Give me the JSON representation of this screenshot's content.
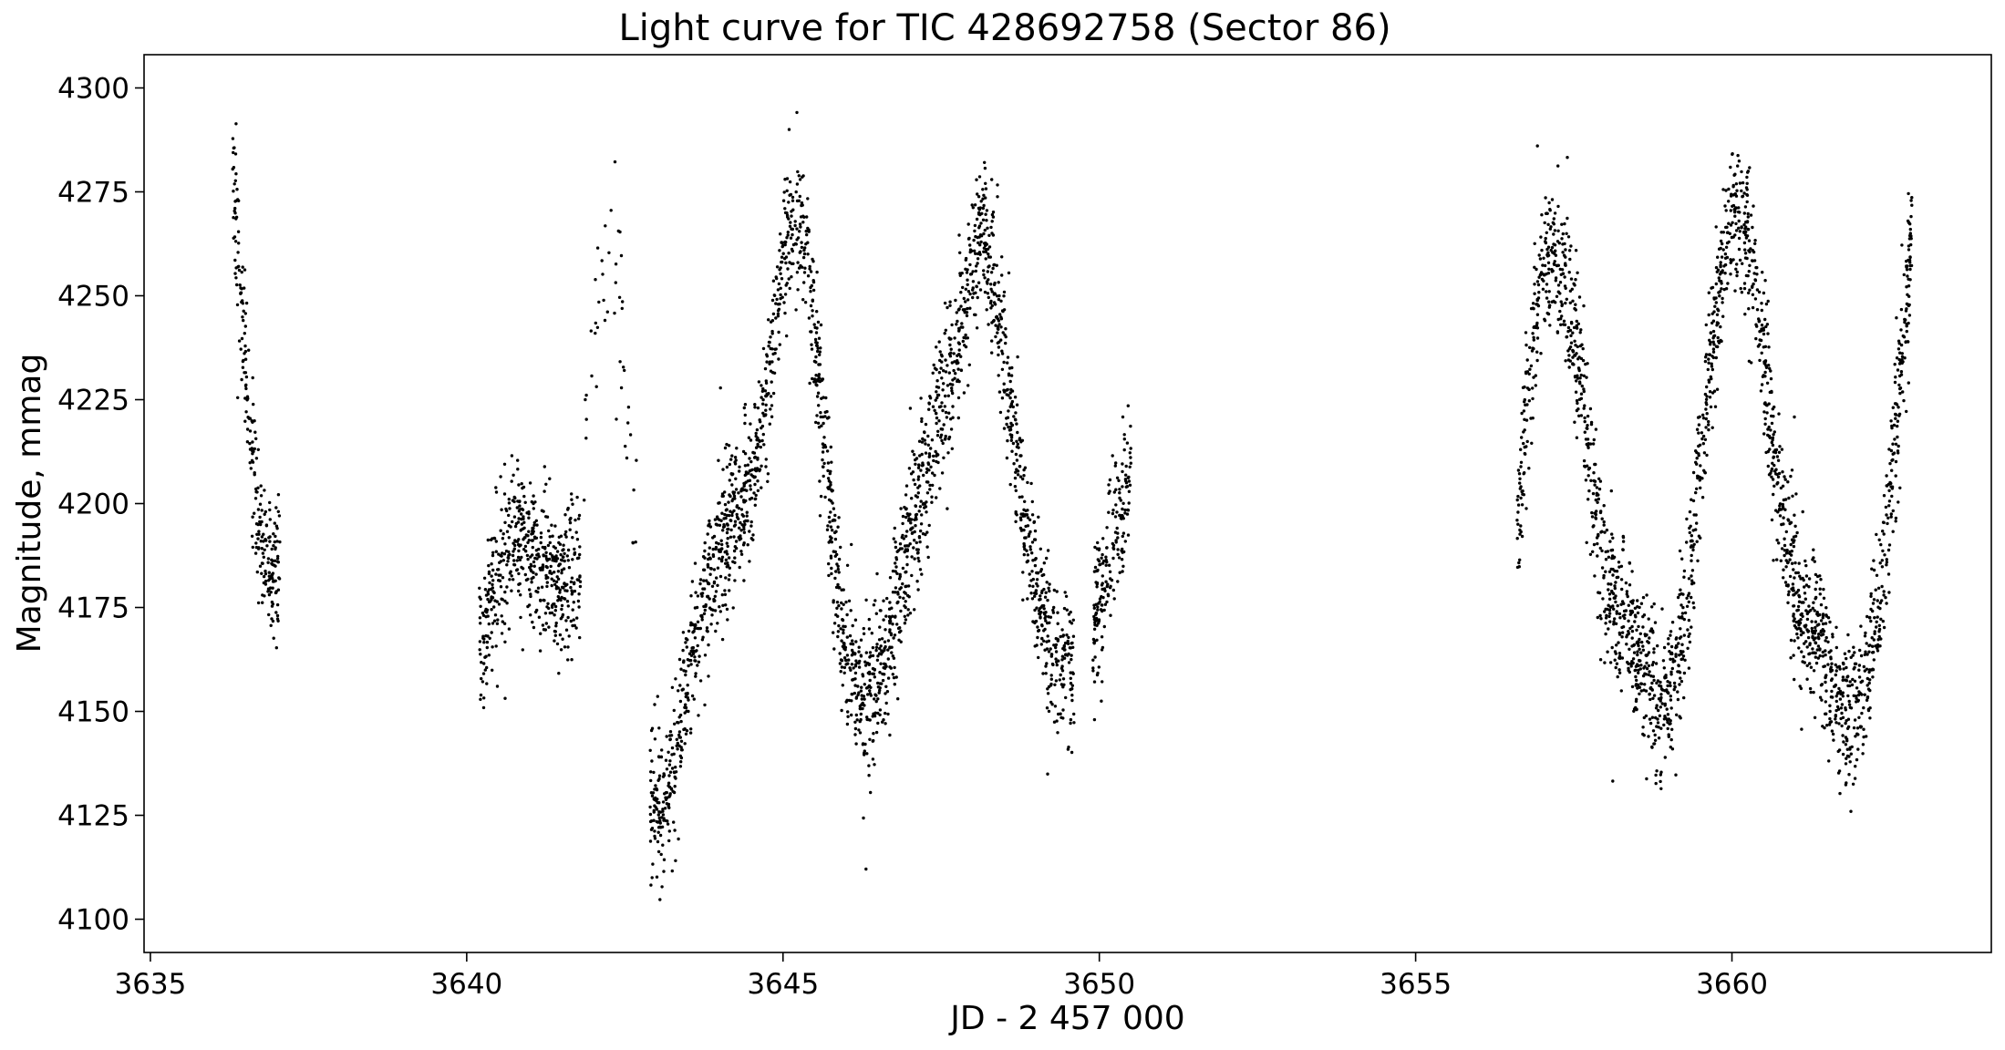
{
  "chart_data": {
    "type": "scatter",
    "title": "Light curve for TIC 428692758 (Sector 86)",
    "xlabel": "JD - 2 457 000",
    "ylabel": "Magnitude, mmag",
    "xlim": [
      3634.9,
      3664.1
    ],
    "ylim": [
      4092,
      4308
    ],
    "xticks": [
      3635,
      3640,
      3645,
      3650,
      3655,
      3660
    ],
    "yticks": [
      4100,
      4125,
      4150,
      4175,
      4200,
      4225,
      4250,
      4275,
      4300
    ],
    "grid": false,
    "marker_color": "#000000",
    "series_trend": [
      {
        "segment": 1,
        "x": [
          3636.3,
          3636.45,
          3636.6,
          3636.75,
          3636.9,
          3637.05
        ],
        "y": [
          4280,
          4245,
          4212,
          4192,
          4183,
          4182
        ]
      },
      {
        "segment": 2,
        "x": [
          3640.2,
          3640.45,
          3640.7,
          3641.0,
          3641.3,
          3641.6,
          3641.8
        ],
        "y": [
          4165,
          4180,
          4192,
          4190,
          4180,
          4182,
          4190
        ]
      },
      {
        "segment": 3,
        "x": [
          3641.85,
          3642.05,
          3642.25,
          3642.45,
          3642.6,
          3642.7
        ],
        "y": [
          4215,
          4250,
          4255,
          4240,
          4215,
          4190
        ]
      },
      {
        "segment": 4,
        "x": [
          3642.9,
          3643.1,
          3643.3,
          3643.6,
          3643.9,
          3644.2,
          3644.5,
          3644.8,
          3645.0,
          3645.2,
          3645.4,
          3645.6,
          3645.8,
          3646.0,
          3646.3,
          3646.6,
          3646.9,
          3647.2,
          3647.5,
          3647.8,
          3648.0,
          3648.2,
          3648.4,
          3648.6,
          3648.8,
          3649.0,
          3649.3,
          3649.6
        ],
        "y": [
          4130,
          4125,
          4140,
          4165,
          4185,
          4198,
          4205,
          4230,
          4262,
          4270,
          4258,
          4225,
          4190,
          4162,
          4152,
          4162,
          4182,
          4205,
          4222,
          4240,
          4258,
          4265,
          4248,
          4222,
          4198,
          4178,
          4162,
          4162
        ]
      },
      {
        "segment": 5,
        "x": [
          3649.9,
          3650.1,
          3650.3,
          3650.5
        ],
        "y": [
          4170,
          4182,
          4195,
          4210
        ]
      },
      {
        "segment": 6,
        "x": [
          3656.6,
          3656.8,
          3657.0,
          3657.2,
          3657.4,
          3657.6,
          3657.8,
          3658.0,
          3658.3,
          3658.6,
          3658.9,
          3659.1,
          3659.3,
          3659.5,
          3659.7,
          3659.9,
          3660.1,
          3660.3,
          3660.5,
          3660.7,
          3660.9,
          3661.1,
          3661.3,
          3661.5,
          3661.7,
          3661.9,
          3662.1,
          3662.3,
          3662.5,
          3662.7,
          3662.85
        ],
        "y": [
          4195,
          4232,
          4252,
          4262,
          4250,
          4232,
          4205,
          4182,
          4172,
          4162,
          4152,
          4158,
          4178,
          4210,
          4242,
          4262,
          4272,
          4262,
          4235,
          4205,
          4185,
          4172,
          4172,
          4162,
          4152,
          4147,
          4155,
          4172,
          4200,
          4240,
          4265
        ]
      }
    ]
  }
}
